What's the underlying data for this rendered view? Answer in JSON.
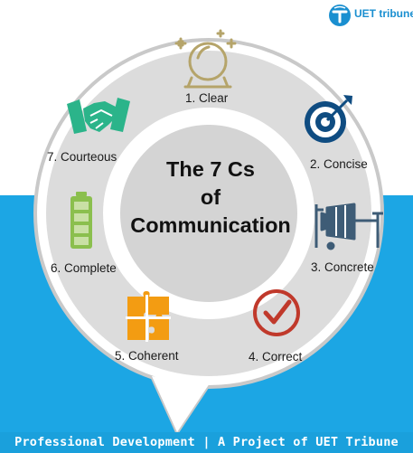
{
  "brand": {
    "logo_text": "UET tribune",
    "colors": {
      "blue": "#1ca6e4",
      "green": "#2bb48a",
      "orange": "#f39c12",
      "red": "#c0392b",
      "navy": "#0f4c81",
      "slate": "#3e5c76",
      "gold": "#b5a46a",
      "battery_green": "#8bbf4e"
    }
  },
  "center": {
    "line1": "The 7 Cs",
    "line2": "of",
    "line3": "Communication"
  },
  "items": [
    {
      "label": "1. Clear",
      "icon": "crystal-ball-icon"
    },
    {
      "label": "2. Concise",
      "icon": "target-icon"
    },
    {
      "label": "3. Concrete",
      "icon": "cement-mixer-icon"
    },
    {
      "label": "4. Correct",
      "icon": "checkmark-icon"
    },
    {
      "label": "5. Coherent",
      "icon": "puzzle-icon"
    },
    {
      "label": "6. Complete",
      "icon": "battery-icon"
    },
    {
      "label": "7. Courteous",
      "icon": "handshake-icon"
    }
  ],
  "footer": {
    "text": "Professional Development | A Project of UET Tribune"
  }
}
